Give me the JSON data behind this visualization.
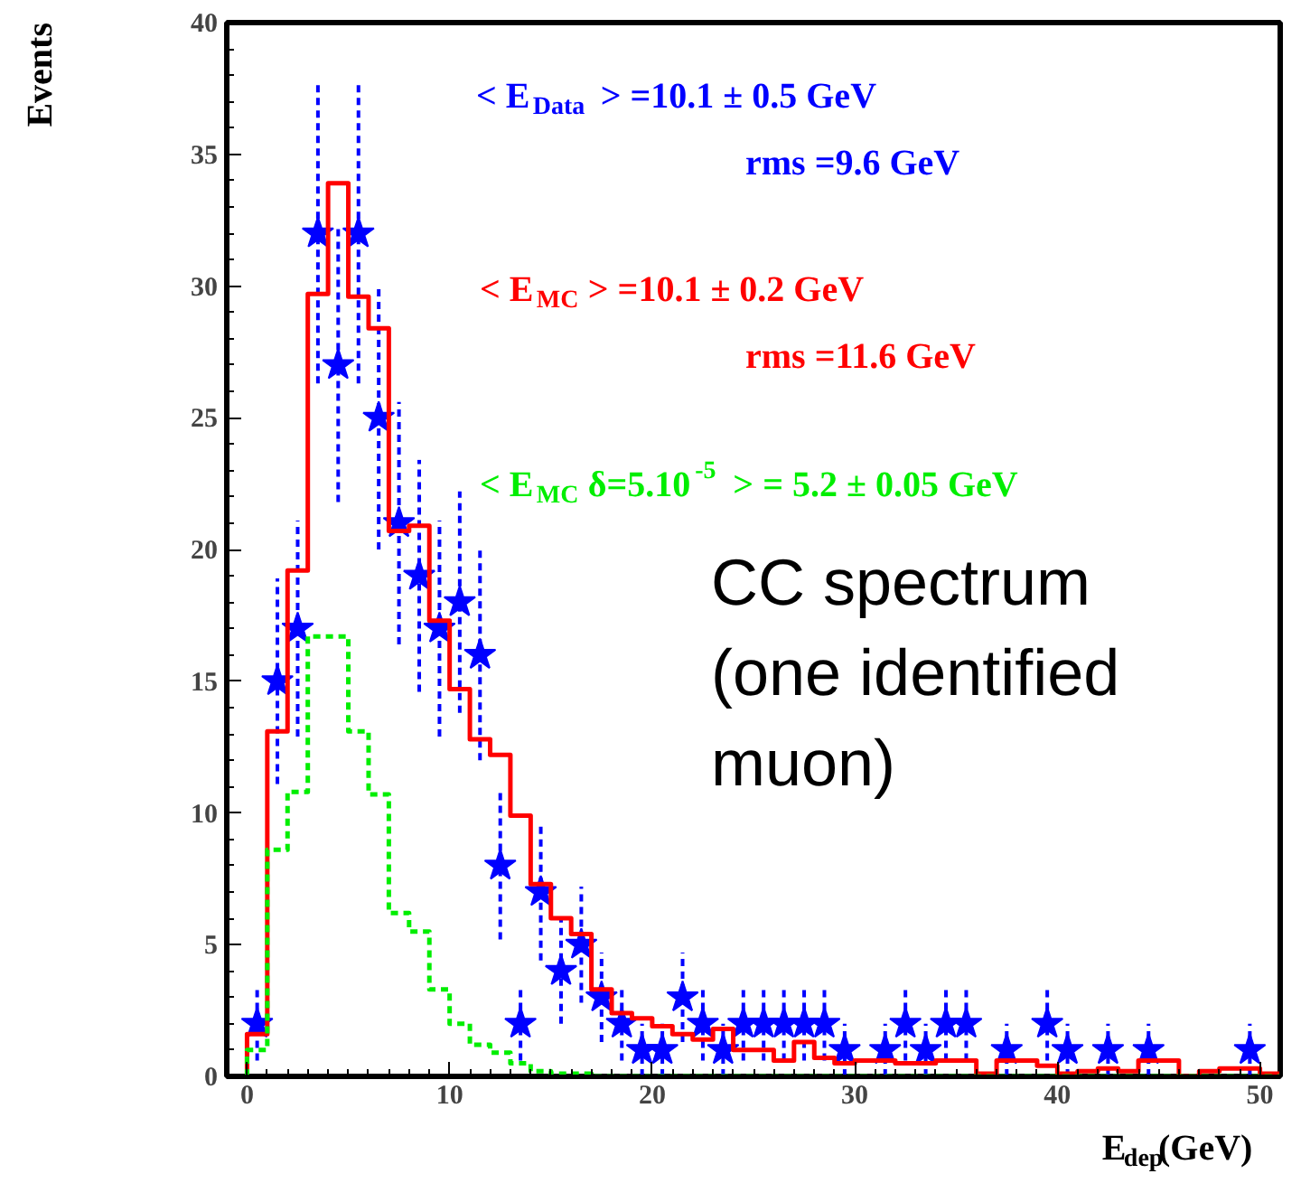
{
  "chart_data": {
    "type": "histogram",
    "xlabel": "E$_{dep}$(GeV)",
    "ylabel": "Events",
    "bins": [
      0,
      1,
      2,
      3,
      4,
      5,
      6,
      7,
      8,
      9,
      10,
      11,
      12,
      13,
      14,
      15,
      16,
      17,
      18,
      19,
      20,
      21,
      22,
      23,
      24,
      25,
      26,
      27,
      28,
      29,
      30,
      31,
      32,
      33,
      34,
      35,
      36,
      37,
      38,
      39,
      40,
      41,
      42,
      43,
      44,
      45,
      46,
      47,
      48,
      49,
      50,
      51
    ],
    "series": [
      {
        "type": "scatter",
        "color": "#0000ff",
        "marker": "star",
        "x": [
          0.5,
          1.5,
          2.5,
          3.5,
          4.5,
          5.5,
          6.5,
          7.5,
          8.5,
          9.5,
          10.5,
          11.5,
          12.5,
          13.5,
          14.5,
          15.5,
          16.5,
          17.5,
          18.5,
          19.5,
          20.5,
          21.5,
          22.5,
          23.5,
          24.5,
          25.5,
          26.5,
          27.5,
          28.5,
          29.5,
          31.5,
          32.5,
          33.5,
          34.5,
          35.5,
          37.5,
          39.5,
          40.5,
          42.5,
          44.5,
          49.5
        ],
        "values": [
          2,
          15,
          17,
          32,
          27,
          32,
          25,
          21,
          19,
          17,
          18,
          16,
          8,
          2,
          7,
          4,
          5,
          3,
          2,
          1,
          1,
          3,
          2,
          1,
          2,
          2,
          2,
          2,
          2,
          1,
          1,
          2,
          1,
          2,
          2,
          1,
          2,
          1,
          1,
          1,
          1
        ],
        "errors": [
          1.4,
          3.9,
          4.1,
          5.7,
          5.2,
          5.7,
          5,
          4.6,
          4.4,
          4.1,
          4.2,
          4,
          2.8,
          1.4,
          2.6,
          2,
          2.2,
          1.7,
          1.4,
          1,
          1,
          1.7,
          1.4,
          1,
          1.4,
          1.4,
          1.4,
          1.4,
          1.4,
          1,
          1,
          1.4,
          1,
          1.4,
          1.4,
          1,
          1.4,
          1,
          1,
          1,
          1
        ]
      },
      {
        "color": "#ff0000",
        "line_style": "solid",
        "values": [
          1.6,
          13.1,
          19.2,
          29.7,
          33.9,
          29.6,
          28.4,
          20.7,
          20.9,
          17.3,
          14.7,
          12.8,
          12.2,
          9.9,
          7.3,
          6,
          5.4,
          3.3,
          2.4,
          2.2,
          1.9,
          1.6,
          1.4,
          1.8,
          1,
          1,
          0.6,
          1.3,
          0.7,
          0.5,
          0.6,
          0.6,
          0.5,
          0.5,
          0.6,
          0.6,
          0.1,
          0.6,
          0.6,
          0.4,
          0.1,
          0.2,
          0.3,
          0.2,
          0.6,
          0.6,
          0,
          0.2,
          0.3,
          0.3,
          0.1
        ]
      },
      {
        "color": "#00ee00",
        "line_style": "dashed",
        "values": [
          1,
          8.6,
          10.8,
          16.7,
          16.7,
          13.1,
          10.7,
          6.2,
          5.5,
          3.3,
          2,
          1.2,
          0.9,
          0.5,
          0.2,
          0.1,
          0.1,
          0,
          0,
          0,
          0,
          0,
          0,
          0,
          0,
          0,
          0,
          0,
          0,
          0,
          0,
          0,
          0,
          0,
          0,
          0,
          0,
          0,
          0,
          0,
          0,
          0,
          0,
          0,
          0,
          0,
          0,
          0,
          0,
          0,
          0
        ]
      }
    ],
    "xlim": [
      -1,
      51
    ],
    "ylim": [
      0,
      40
    ],
    "xticks": [
      0,
      10,
      20,
      30,
      40,
      50
    ],
    "yticks": [
      0,
      5,
      10,
      15,
      20,
      25,
      30,
      35,
      40
    ],
    "grid": false,
    "annotations": [
      "< E$_{Data}$ >   =10.1 ± 0.5 GeV",
      "rms =9.6 GeV",
      "< E$_{MC}$ >   =10.1 ± 0.2 GeV",
      "rms =11.6 GeV",
      "< E$_{MC}$ δ=5.10$^{-5}$ > = 5.2 ± 0.05 GeV",
      "CC spectrum (one identified muon)"
    ]
  }
}
